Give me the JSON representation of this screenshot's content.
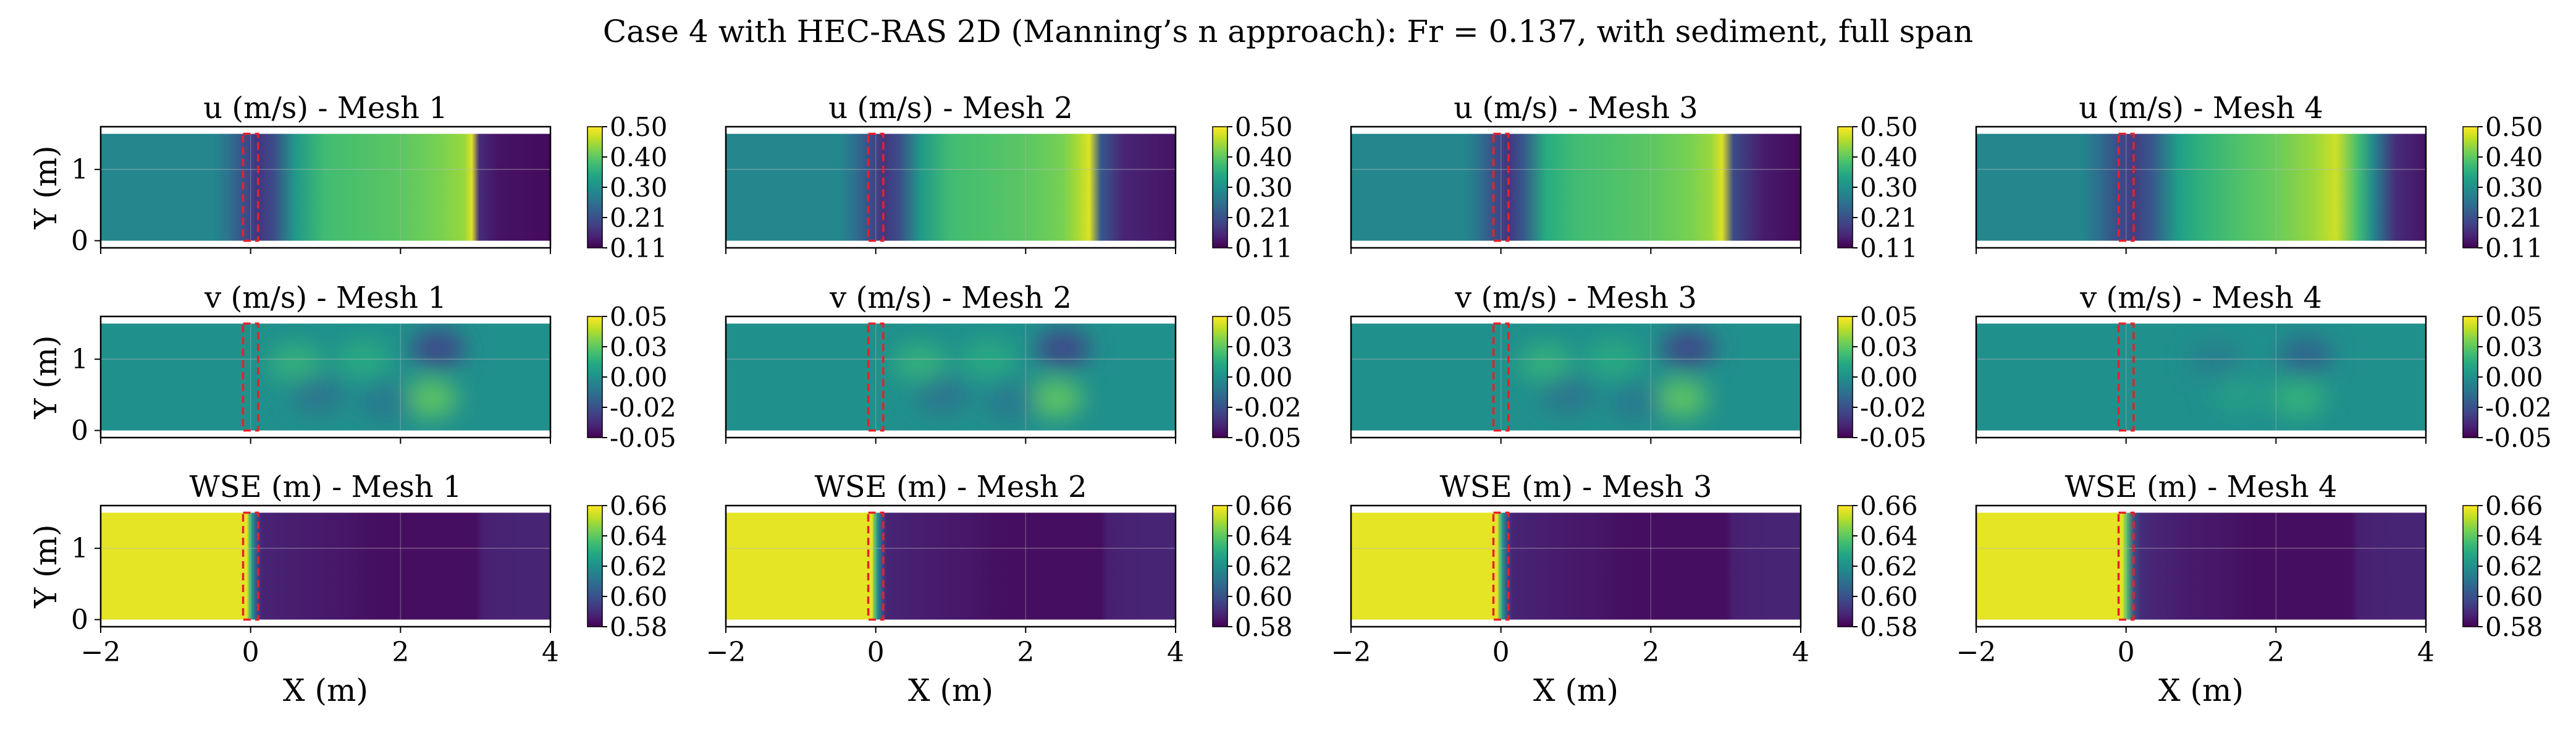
{
  "figure": {
    "suptitle": "Case 4 with HEC-RAS 2D (Manning’s n approach): Fr = 0.137, with sediment, full span"
  },
  "chart_data": {
    "type": "heatmap",
    "title": "Case 4 with HEC-RAS 2D (Manning’s n approach): Fr = 0.137, with sediment, full span",
    "xlabel": "X (m)",
    "ylabel": "Y (m)",
    "xlim": [
      -2,
      4
    ],
    "ylim": [
      -0.1,
      1.6
    ],
    "xticks": [
      "−2",
      "0",
      "2",
      "4"
    ],
    "yticks": [
      "0",
      "1"
    ],
    "domain_y": [
      0,
      1.5
    ],
    "highlight_box": {
      "x": [
        -0.1,
        0.1
      ],
      "y": [
        0,
        1.5
      ],
      "color": "#e8202a",
      "style": "dashed"
    },
    "meshes": [
      "Mesh 1",
      "Mesh 2",
      "Mesh 3",
      "Mesh 4"
    ],
    "panels": [
      {
        "variable": "u",
        "title_prefix": "u (m/s)",
        "colormap": "viridis",
        "vmin": 0.11,
        "vmax": 0.5,
        "colorbar_ticks": [
          "0.50",
          "0.40",
          "0.30",
          "0.21",
          "0.11"
        ],
        "profiles": [
          {
            "mesh": "Mesh 1",
            "x": [
              -2.0,
              -0.5,
              -0.3,
              -0.1,
              0.1,
              0.3,
              0.6,
              1.0,
              1.5,
              2.0,
              2.5,
              2.85,
              2.95,
              3.05,
              3.3,
              4.0
            ],
            "values": [
              0.29,
              0.29,
              0.26,
              0.21,
              0.17,
              0.2,
              0.32,
              0.38,
              0.39,
              0.4,
              0.42,
              0.44,
              0.48,
              0.16,
              0.13,
              0.12
            ]
          },
          {
            "mesh": "Mesh 2",
            "x": [
              -2.0,
              -0.5,
              -0.3,
              -0.1,
              0.1,
              0.3,
              0.6,
              1.0,
              1.5,
              2.0,
              2.5,
              2.7,
              2.85,
              3.0,
              3.3,
              4.0
            ],
            "values": [
              0.29,
              0.29,
              0.26,
              0.21,
              0.17,
              0.2,
              0.32,
              0.38,
              0.39,
              0.4,
              0.42,
              0.45,
              0.48,
              0.22,
              0.15,
              0.13
            ]
          },
          {
            "mesh": "Mesh 3",
            "x": [
              -2.0,
              -0.5,
              -0.3,
              -0.1,
              0.1,
              0.3,
              0.6,
              1.0,
              1.5,
              2.0,
              2.5,
              2.8,
              2.95,
              3.1,
              3.5,
              4.0
            ],
            "values": [
              0.29,
              0.29,
              0.26,
              0.21,
              0.17,
              0.22,
              0.35,
              0.38,
              0.39,
              0.4,
              0.42,
              0.44,
              0.48,
              0.2,
              0.14,
              0.12
            ]
          },
          {
            "mesh": "Mesh 4",
            "x": [
              -2.0,
              -0.6,
              -0.35,
              -0.1,
              0.1,
              0.35,
              0.7,
              1.0,
              1.5,
              2.0,
              2.5,
              2.8,
              3.1,
              3.3,
              3.6,
              4.0
            ],
            "values": [
              0.29,
              0.29,
              0.25,
              0.2,
              0.18,
              0.22,
              0.33,
              0.36,
              0.39,
              0.41,
              0.44,
              0.47,
              0.38,
              0.29,
              0.16,
              0.13
            ]
          }
        ]
      },
      {
        "variable": "v",
        "title_prefix": "v (m/s)",
        "colormap": "viridis",
        "vmin": -0.05,
        "vmax": 0.05,
        "colorbar_ticks": [
          "0.05",
          "0.03",
          "0.00",
          "-0.02",
          "-0.05"
        ],
        "baseline": 0.0,
        "anomalies": [
          {
            "mesh": "Mesh 1",
            "blobs": [
              {
                "x": 0.6,
                "y": 0.95,
                "value": 0.015
              },
              {
                "x": 0.9,
                "y": 0.5,
                "value": -0.012
              },
              {
                "x": 1.5,
                "y": 1.0,
                "value": 0.012
              },
              {
                "x": 2.5,
                "y": 1.15,
                "value": -0.03
              },
              {
                "x": 2.4,
                "y": 0.45,
                "value": 0.025
              },
              {
                "x": 1.8,
                "y": 0.4,
                "value": -0.01
              }
            ]
          },
          {
            "mesh": "Mesh 2",
            "blobs": [
              {
                "x": 0.6,
                "y": 0.95,
                "value": 0.015
              },
              {
                "x": 0.9,
                "y": 0.5,
                "value": -0.012
              },
              {
                "x": 1.5,
                "y": 1.0,
                "value": 0.012
              },
              {
                "x": 2.5,
                "y": 1.15,
                "value": -0.03
              },
              {
                "x": 2.4,
                "y": 0.45,
                "value": 0.025
              },
              {
                "x": 1.8,
                "y": 0.4,
                "value": -0.01
              }
            ]
          },
          {
            "mesh": "Mesh 3",
            "blobs": [
              {
                "x": 0.6,
                "y": 0.95,
                "value": 0.015
              },
              {
                "x": 0.9,
                "y": 0.5,
                "value": -0.012
              },
              {
                "x": 1.5,
                "y": 1.0,
                "value": 0.012
              },
              {
                "x": 2.5,
                "y": 1.15,
                "value": -0.03
              },
              {
                "x": 2.4,
                "y": 0.45,
                "value": 0.025
              },
              {
                "x": 1.8,
                "y": 0.4,
                "value": -0.01
              }
            ]
          },
          {
            "mesh": "Mesh 4",
            "blobs": [
              {
                "x": 1.2,
                "y": 1.0,
                "value": -0.008
              },
              {
                "x": 2.4,
                "y": 1.05,
                "value": -0.018
              },
              {
                "x": 2.3,
                "y": 0.45,
                "value": 0.015
              },
              {
                "x": 1.5,
                "y": 0.5,
                "value": 0.006
              }
            ]
          }
        ]
      },
      {
        "variable": "wse",
        "title_prefix": "WSE (m)",
        "colormap": "viridis",
        "vmin": 0.58,
        "vmax": 0.66,
        "colorbar_ticks": [
          "0.66",
          "0.64",
          "0.62",
          "0.60",
          "0.58"
        ],
        "profiles": [
          {
            "mesh": "Mesh 1",
            "x": [
              -2.0,
              -0.05,
              0.0,
              0.05,
              0.1,
              0.15,
              0.4,
              0.8,
              1.2,
              1.7,
              2.2,
              3.0,
              3.1,
              3.6,
              4.0
            ],
            "values": [
              0.657,
              0.657,
              0.63,
              0.61,
              0.595,
              0.588,
              0.587,
              0.586,
              0.585,
              0.583,
              0.583,
              0.583,
              0.587,
              0.588,
              0.588
            ]
          },
          {
            "mesh": "Mesh 2",
            "x": [
              -2.0,
              -0.05,
              0.0,
              0.05,
              0.1,
              0.15,
              0.4,
              0.8,
              1.2,
              1.7,
              2.2,
              3.0,
              3.1,
              3.6,
              4.0
            ],
            "values": [
              0.657,
              0.657,
              0.63,
              0.61,
              0.595,
              0.588,
              0.587,
              0.586,
              0.585,
              0.583,
              0.583,
              0.583,
              0.587,
              0.588,
              0.588
            ]
          },
          {
            "mesh": "Mesh 3",
            "x": [
              -2.0,
              -0.05,
              0.0,
              0.05,
              0.1,
              0.15,
              0.4,
              0.8,
              1.2,
              1.7,
              2.2,
              3.0,
              3.1,
              3.6,
              4.0
            ],
            "values": [
              0.657,
              0.657,
              0.63,
              0.61,
              0.595,
              0.588,
              0.587,
              0.586,
              0.585,
              0.583,
              0.583,
              0.583,
              0.587,
              0.588,
              0.588
            ]
          },
          {
            "mesh": "Mesh 4",
            "x": [
              -2.0,
              -0.05,
              0.0,
              0.1,
              0.2,
              0.4,
              0.8,
              1.2,
              1.7,
              2.2,
              3.0,
              3.1,
              3.6,
              4.0
            ],
            "values": [
              0.657,
              0.657,
              0.64,
              0.6,
              0.59,
              0.588,
              0.586,
              0.585,
              0.583,
              0.583,
              0.583,
              0.587,
              0.588,
              0.588
            ]
          }
        ]
      }
    ]
  }
}
